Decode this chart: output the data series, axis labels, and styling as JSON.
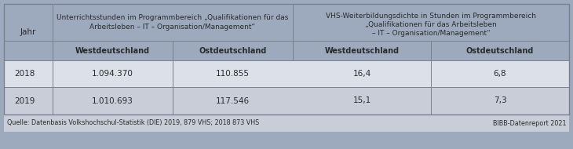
{
  "col1_header": "Unterrichtsstunden im Programmbereich „Qualifikationen für das\nArbeitsleben – IT – Organisation/Management“",
  "col2_header": "VHS-Weiterbildungsdichte in Stunden im Programmbereich\n„Qualifikationen für das Arbeitsleben\n– IT – Organisation/Management“",
  "sub_headers": [
    "Westdeutschland",
    "Ostdeutschland",
    "Westdeutschland",
    "Ostdeutschland"
  ],
  "row_header": "Jahr",
  "rows": [
    [
      "2018",
      "1.094.370",
      "110.855",
      "16,4",
      "6,8"
    ],
    [
      "2019",
      "1.010.693",
      "117.546",
      "15,1",
      "7,3"
    ]
  ],
  "footer_left": "Quelle: Datenbasis Volkshochschul-Statistik (DIE) 2019, 879 VHS; 2018 873 VHS",
  "footer_right": "BIBB-Datenreport 2021",
  "bg_color": "#9daabe",
  "header_bg": "#9daabe",
  "subheader_bg": "#9daabe",
  "row_bg_odd": "#dce0e8",
  "row_bg_even": "#c8cdd8",
  "footer_bg": "#c8cdd8",
  "text_color": "#2a2a2a",
  "border_color": "#7a8090",
  "white": "#ffffff"
}
